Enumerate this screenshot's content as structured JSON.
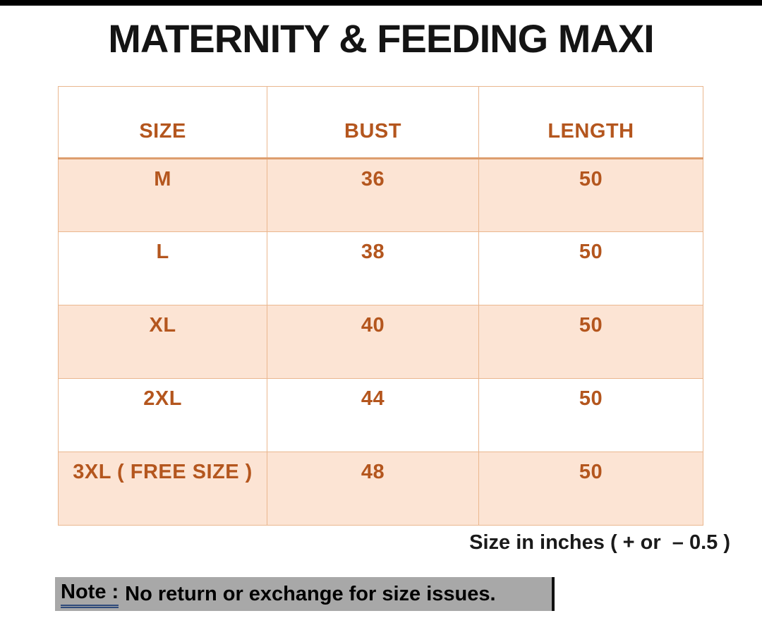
{
  "title": "MATERNITY & FEEDING MAXI",
  "table": {
    "columns": [
      "SIZE",
      "BUST",
      "LENGTH"
    ],
    "rows": [
      {
        "size": "M",
        "bust": "36",
        "length": "50"
      },
      {
        "size": "L",
        "bust": "38",
        "length": "50"
      },
      {
        "size": "XL",
        "bust": "40",
        "length": "50"
      },
      {
        "size": "2XL",
        "bust": "44",
        "length": "50"
      },
      {
        "size": "3XL ( FREE SIZE )",
        "bust": "48",
        "length": "50"
      }
    ]
  },
  "units_note": "Size in inches ( + or  – 0.5 )",
  "note": {
    "label": "Note :",
    "text": "No return or exchange for size issues."
  },
  "colors": {
    "accent_text": "#b4561e",
    "row_shade": "#fce4d4",
    "table_border": "#eab78f",
    "header_divider": "#dd9e6e",
    "note_highlight": "#a8a8a8",
    "note_underline": "#2e4a7a",
    "top_bar": "#000000"
  }
}
